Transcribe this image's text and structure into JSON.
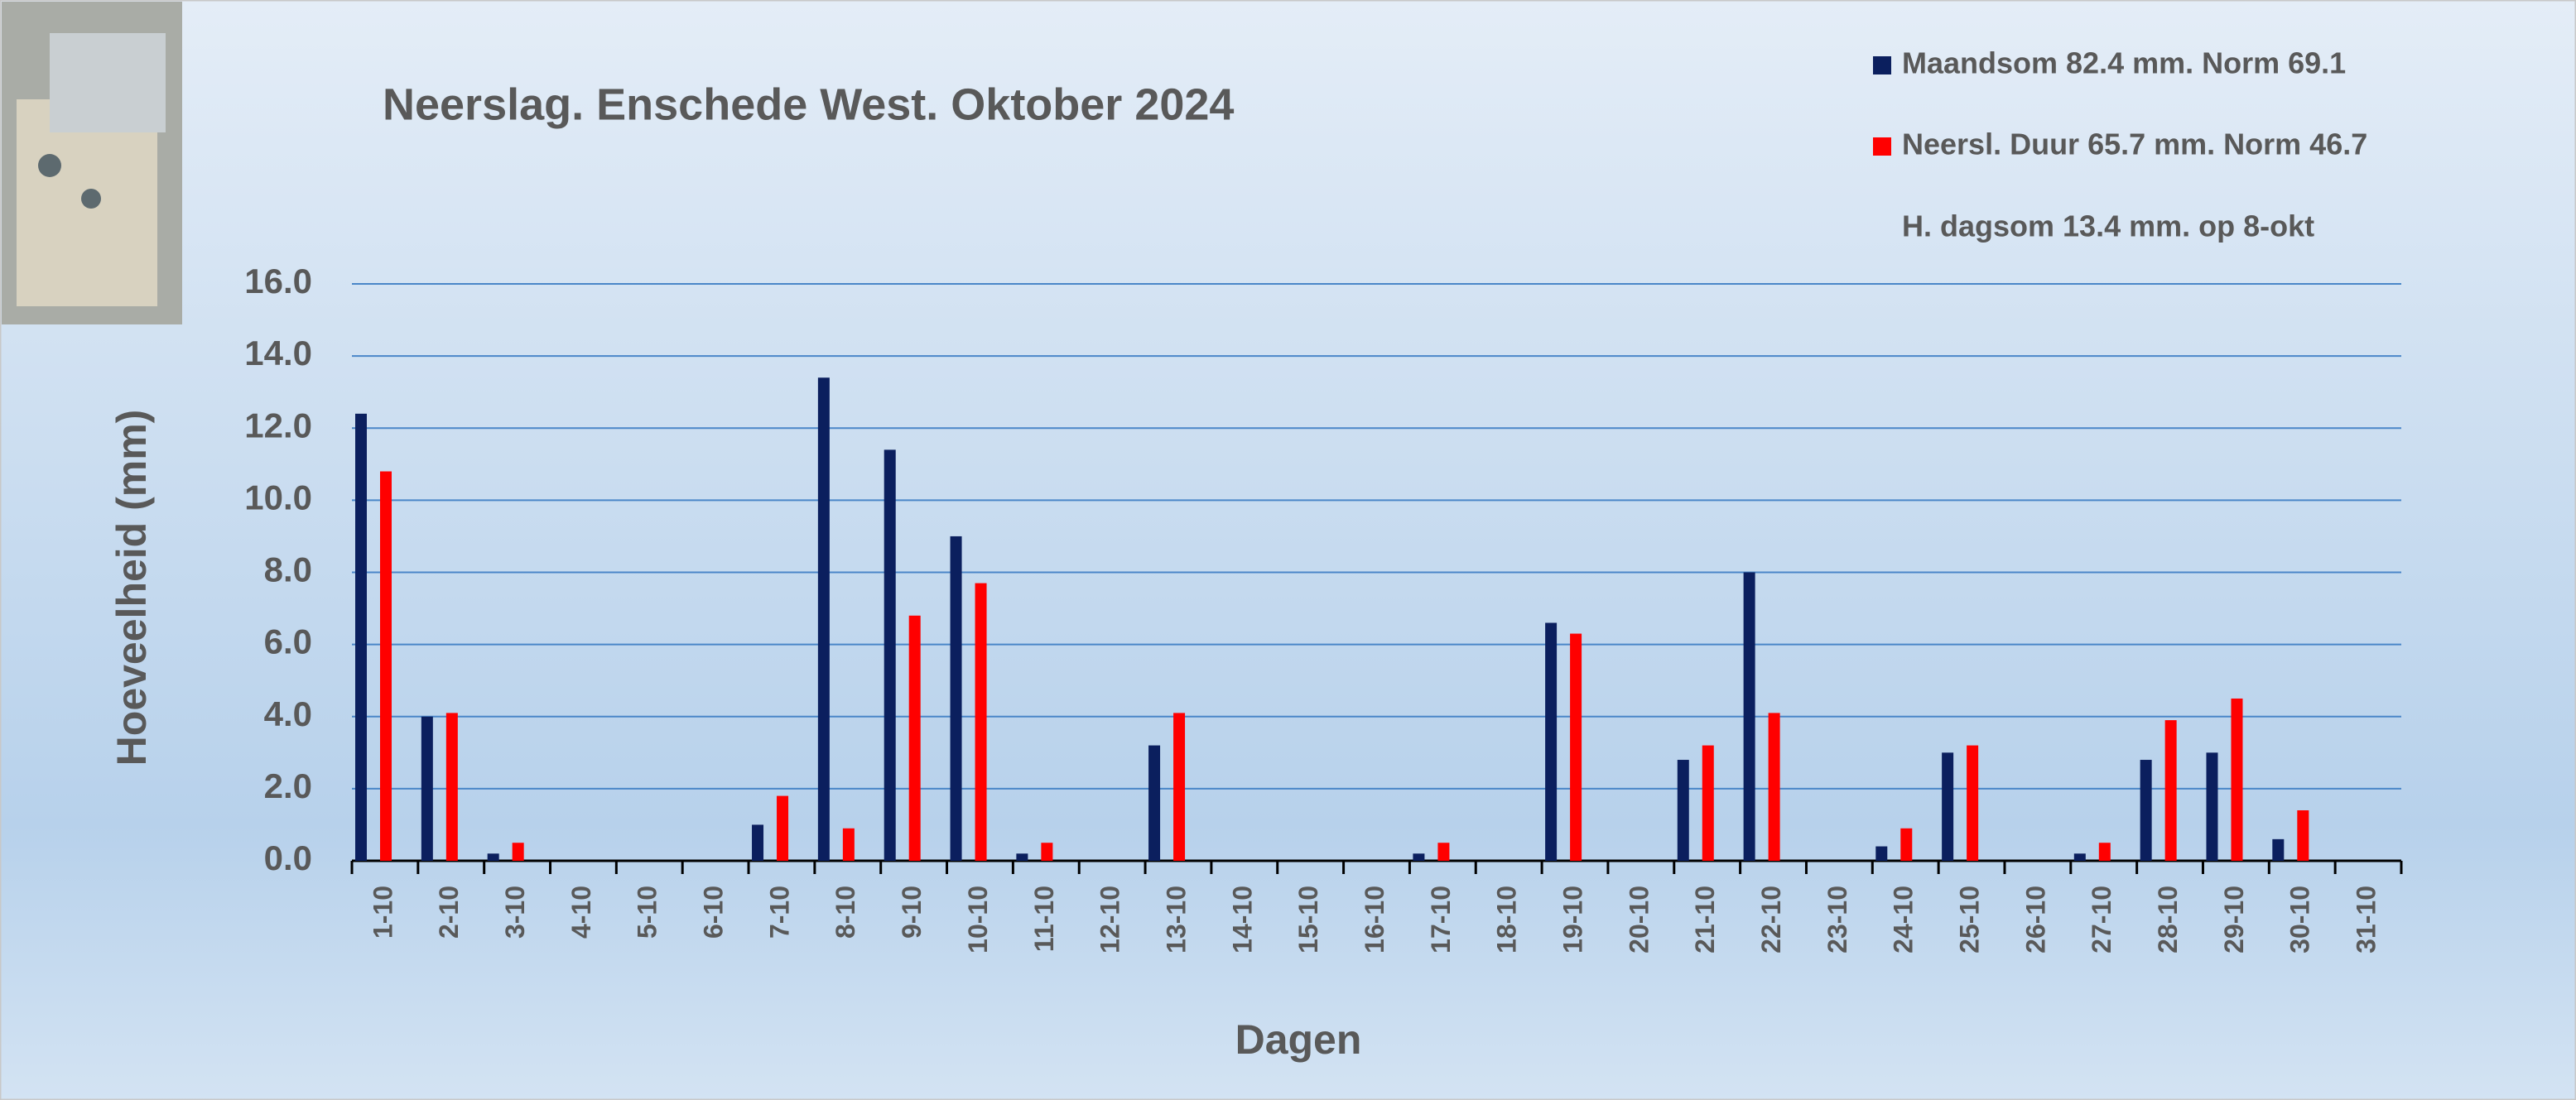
{
  "chart_data": {
    "type": "bar",
    "title": "Neerslag. Enschede West. Oktober 2024",
    "annotation": "H. dagsom 13.4 mm.  op  8-okt",
    "x_label": "Dagen",
    "y_label": "Hoeveelheid (mm)",
    "categories": [
      "1-10",
      "2-10",
      "3-10",
      "4-10",
      "5-10",
      "6-10",
      "7-10",
      "8-10",
      "9-10",
      "10-10",
      "11-10",
      "12-10",
      "13-10",
      "14-10",
      "15-10",
      "16-10",
      "17-10",
      "18-10",
      "19-10",
      "20-10",
      "21-10",
      "22-10",
      "23-10",
      "24-10",
      "25-10",
      "26-10",
      "27-10",
      "28-10",
      "29-10",
      "30-10",
      "31-10"
    ],
    "series": [
      {
        "name": "Maandsom 82.4 mm. Norm 69.1",
        "color": "#0b1f5e",
        "values": [
          12.4,
          4.0,
          0.2,
          0,
          0,
          0,
          1.0,
          13.4,
          11.4,
          9.0,
          0.2,
          0,
          3.2,
          0,
          0,
          0,
          0.2,
          0,
          6.6,
          0,
          2.8,
          8.0,
          0,
          0.4,
          3.0,
          0,
          0.2,
          2.8,
          3.0,
          0.6,
          0
        ]
      },
      {
        "name": "Neersl. Duur 65.7 mm. Norm 46.7",
        "color": "#ff0000",
        "values": [
          10.8,
          4.1,
          0.5,
          0,
          0,
          0,
          1.8,
          0.9,
          6.8,
          7.7,
          0.5,
          0,
          4.1,
          0,
          0,
          0,
          0.5,
          0,
          6.3,
          0,
          3.2,
          4.1,
          0,
          0.9,
          3.2,
          0,
          0.5,
          3.9,
          4.5,
          1.4,
          0
        ]
      }
    ],
    "ylim": [
      0,
      16
    ],
    "yticks": [
      {
        "value": 0,
        "label": "0.0"
      },
      {
        "value": 2,
        "label": "2.0"
      },
      {
        "value": 4,
        "label": "4.0"
      },
      {
        "value": 6,
        "label": "6.0"
      },
      {
        "value": 8,
        "label": "8.0"
      },
      {
        "value": 10,
        "label": "10.0"
      },
      {
        "value": 12,
        "label": "12.0"
      },
      {
        "value": 14,
        "label": "14.0"
      },
      {
        "value": 16,
        "label": "16.0"
      }
    ],
    "grid": true
  }
}
